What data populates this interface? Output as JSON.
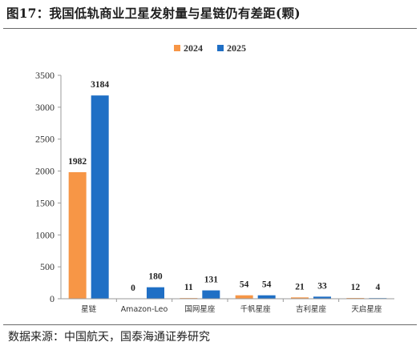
{
  "title": "图17：我国低轨商业卫星发射量与星链仍有差距(颗)",
  "source": "数据来源：中国航天，国泰海通证券研究",
  "colors": {
    "s2024": "#F79646",
    "s2025": "#1F6FC5"
  },
  "chart_data": {
    "type": "bar",
    "categories": [
      "星链",
      "Amazon-Leo",
      "国网星座",
      "千帆星座",
      "吉利星座",
      "天启星座"
    ],
    "series": [
      {
        "name": "2024",
        "values": [
          1982,
          0,
          11,
          54,
          21,
          12
        ]
      },
      {
        "name": "2025",
        "values": [
          3184,
          180,
          131,
          54,
          33,
          4
        ]
      }
    ],
    "ylim": [
      0,
      3500
    ],
    "yticks": [
      0,
      500,
      1000,
      1500,
      2000,
      2500,
      3000,
      3500
    ],
    "grid": false,
    "legend": "top-center",
    "title": "",
    "xlabel": "",
    "ylabel": ""
  }
}
